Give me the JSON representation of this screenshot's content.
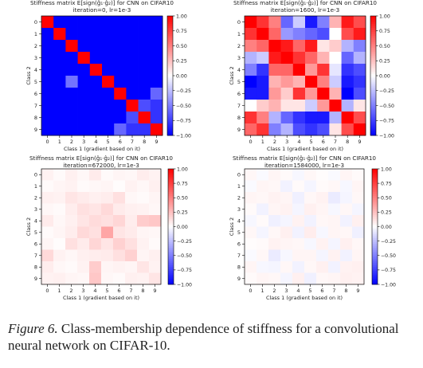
{
  "chart_data": [
    {
      "type": "heatmap",
      "title_lines": [
        "Stiffness matrix E[sign(ĝ₁·ĝ₂)] for CNN on CIFAR10",
        "iteration=0, lr=1e-3"
      ],
      "xlabel": "Class 1 (gradient based on it)",
      "ylabel": "Class 2",
      "x_ticks": [
        "0",
        "1",
        "2",
        "3",
        "4",
        "5",
        "6",
        "7",
        "8",
        "9"
      ],
      "y_ticks": [
        "0",
        "1",
        "2",
        "3",
        "4",
        "5",
        "6",
        "7",
        "8",
        "9"
      ],
      "colorbar_ticks": [
        "1.00",
        "0.75",
        "0.50",
        "0.25",
        "0.00",
        "−0.25",
        "−0.50",
        "−0.75",
        "−1.00"
      ],
      "vmin": -1,
      "vmax": 1,
      "values": [
        [
          1.0,
          -1,
          -1,
          -1,
          -1,
          -1,
          -1,
          -1,
          -1,
          -1
        ],
        [
          -1,
          1.0,
          -1,
          -1,
          -1,
          -1,
          -1,
          -1,
          -1,
          -1
        ],
        [
          -1,
          -1,
          1.0,
          -1,
          -1,
          -1,
          -1,
          -1,
          -1,
          -1
        ],
        [
          -1,
          -1,
          -1,
          1.0,
          -1,
          -1,
          -1,
          -1,
          -1,
          -1
        ],
        [
          -1,
          -1,
          -1,
          -1,
          1.0,
          -1,
          -1,
          -1,
          -1,
          -1
        ],
        [
          -1,
          -1,
          -0.55,
          -1,
          -1,
          1.0,
          -1,
          -1,
          -1,
          -1
        ],
        [
          -1,
          -1,
          -1,
          -1,
          -1,
          -1,
          1.0,
          -1,
          -1,
          -0.6
        ],
        [
          -1,
          -1,
          -1,
          -1,
          -1,
          -1,
          -1,
          1.0,
          -0.7,
          -0.8
        ],
        [
          -1,
          -1,
          -1,
          -1,
          -1,
          -1,
          -1,
          -0.7,
          1.0,
          -0.8
        ],
        [
          -1,
          -1,
          -1,
          -1,
          -1,
          -1,
          -0.6,
          -0.8,
          -0.8,
          1.0
        ]
      ]
    },
    {
      "type": "heatmap",
      "title_lines": [
        "Stiffness matrix E[sign(ĝ₁·ĝ₂)] for CNN on CIFAR10",
        "iteration=1600, lr=1e-3"
      ],
      "xlabel": "Class 1 (gradient based on it)",
      "ylabel": "Class 2",
      "x_ticks": [
        "0",
        "1",
        "2",
        "3",
        "4",
        "5",
        "6",
        "7",
        "8",
        "9"
      ],
      "y_ticks": [
        "0",
        "1",
        "2",
        "3",
        "4",
        "5",
        "6",
        "7",
        "8",
        "9"
      ],
      "colorbar_ticks": [
        "1.00",
        "0.75",
        "0.50",
        "0.25",
        "0.00",
        "−0.25",
        "−0.50",
        "−0.75",
        "−1.00"
      ],
      "vmin": -1,
      "vmax": 1,
      "values": [
        [
          1.0,
          0.8,
          0.5,
          -0.6,
          -0.2,
          -0.9,
          -0.5,
          0.3,
          0.9,
          0.7
        ],
        [
          0.8,
          1.0,
          0.6,
          -0.4,
          -0.5,
          -0.6,
          -0.7,
          0.0,
          0.7,
          0.9
        ],
        [
          0.5,
          0.6,
          1.0,
          0.9,
          0.6,
          0.9,
          0.1,
          0.2,
          -0.3,
          -0.5
        ],
        [
          -0.3,
          -0.2,
          0.9,
          1.0,
          0.8,
          0.6,
          0.3,
          0.0,
          -0.6,
          -0.3
        ],
        [
          -0.5,
          -0.8,
          0.6,
          0.6,
          1.0,
          0.4,
          0.8,
          -0.1,
          -0.8,
          -0.7
        ],
        [
          -1.0,
          -0.9,
          0.3,
          0.4,
          0.3,
          1.0,
          0.5,
          -0.2,
          -0.9,
          -0.8
        ],
        [
          -0.9,
          -0.9,
          0.4,
          0.2,
          0.8,
          0.4,
          1.0,
          0.3,
          -1.0,
          -0.7
        ],
        [
          0.0,
          0.2,
          0.3,
          0.1,
          0.1,
          -0.2,
          0.4,
          1.0,
          -0.3,
          0.1
        ],
        [
          0.8,
          0.5,
          -0.3,
          -0.6,
          -0.8,
          -0.9,
          -0.9,
          -0.3,
          1.0,
          0.7
        ],
        [
          0.6,
          0.8,
          -0.5,
          -0.3,
          -0.7,
          -0.8,
          -0.7,
          0.1,
          0.7,
          1.0
        ]
      ]
    },
    {
      "type": "heatmap",
      "title_lines": [
        "Stiffness matrix E[sign(ĝ₁·ĝ₂)] for CNN on CIFAR10",
        "iteration=672000, lr=1e-3"
      ],
      "xlabel": "Class 1 (gradient based on it)",
      "ylabel": "Class 2",
      "x_ticks": [
        "0",
        "1",
        "2",
        "3",
        "4",
        "5",
        "6",
        "7",
        "8",
        "9"
      ],
      "y_ticks": [
        "0",
        "1",
        "2",
        "3",
        "4",
        "5",
        "6",
        "7",
        "8",
        "9"
      ],
      "colorbar_ticks": [
        "1.00",
        "0.75",
        "0.50",
        "0.25",
        "0.00",
        "−0.25",
        "−0.50",
        "−0.75",
        "−1.00"
      ],
      "vmin": -1,
      "vmax": 1,
      "values": [
        [
          0.05,
          0.02,
          0.06,
          0.03,
          0.08,
          0.02,
          0.04,
          0.03,
          0.07,
          0.05
        ],
        [
          0.02,
          0.04,
          0.05,
          0.02,
          0.03,
          0.04,
          0.01,
          0.05,
          0.03,
          0.06
        ],
        [
          0.06,
          0.05,
          0.1,
          0.08,
          0.06,
          0.07,
          0.12,
          0.03,
          0.02,
          0.04
        ],
        [
          0.03,
          0.02,
          0.07,
          0.12,
          0.1,
          0.15,
          0.08,
          0.06,
          0.05,
          0.03
        ],
        [
          0.08,
          0.03,
          0.06,
          0.1,
          0.14,
          0.12,
          0.16,
          0.07,
          0.2,
          0.22
        ],
        [
          0.02,
          0.04,
          0.07,
          0.15,
          0.12,
          0.35,
          0.1,
          0.08,
          0.04,
          0.03
        ],
        [
          0.04,
          0.01,
          0.12,
          0.08,
          0.16,
          0.1,
          0.18,
          0.12,
          0.05,
          0.02
        ],
        [
          0.15,
          0.05,
          0.03,
          0.06,
          0.07,
          0.08,
          0.12,
          0.18,
          0.04,
          0.06
        ],
        [
          0.07,
          0.03,
          0.02,
          0.05,
          0.2,
          0.04,
          0.05,
          0.04,
          0.1,
          0.05
        ],
        [
          0.05,
          0.06,
          0.04,
          0.03,
          0.22,
          0.03,
          0.02,
          0.06,
          0.05,
          0.1
        ]
      ]
    },
    {
      "type": "heatmap",
      "title_lines": [
        "Stiffness matrix E[sign(ĝ₁·ĝ₂)] for CNN on CIFAR10",
        "iteration=1584000, lr=1e-3"
      ],
      "xlabel": "Class 1 (gradient based on it)",
      "ylabel": "Class 2",
      "x_ticks": [
        "0",
        "1",
        "2",
        "3",
        "4",
        "5",
        "6",
        "7",
        "8",
        "9"
      ],
      "y_ticks": [
        "0",
        "1",
        "2",
        "3",
        "4",
        "5",
        "6",
        "7",
        "8",
        "9"
      ],
      "colorbar_ticks": [
        "1.00",
        "0.75",
        "0.50",
        "0.25",
        "0.00",
        "−0.25",
        "−0.50",
        "−0.75",
        "−1.00"
      ],
      "vmin": -1,
      "vmax": 1,
      "values": [
        [
          0.03,
          -0.02,
          0.04,
          0.02,
          -0.03,
          0.03,
          0.01,
          -0.02,
          0.04,
          0.02
        ],
        [
          -0.02,
          0.04,
          0.03,
          -0.05,
          0.02,
          -0.04,
          0.02,
          0.03,
          -0.03,
          0.04
        ],
        [
          0.04,
          0.03,
          0.05,
          0.04,
          -0.06,
          0.03,
          0.05,
          -0.08,
          -0.04,
          0.03
        ],
        [
          0.02,
          -0.05,
          0.04,
          0.05,
          -0.04,
          0.06,
          0.04,
          -0.03,
          0.03,
          -0.04
        ],
        [
          -0.03,
          0.02,
          -0.06,
          -0.04,
          0.05,
          -0.05,
          0.03,
          0.04,
          -0.05,
          0.06
        ],
        [
          0.03,
          -0.04,
          0.03,
          0.06,
          -0.05,
          0.07,
          -0.03,
          0.04,
          0.03,
          -0.06
        ],
        [
          0.01,
          0.02,
          0.05,
          0.04,
          0.03,
          -0.03,
          0.05,
          -0.04,
          0.06,
          0.03
        ],
        [
          -0.02,
          0.03,
          -0.08,
          -0.03,
          0.04,
          0.04,
          -0.04,
          0.05,
          -0.05,
          0.04
        ],
        [
          0.04,
          -0.03,
          -0.04,
          0.03,
          -0.05,
          0.03,
          0.06,
          -0.05,
          0.05,
          0.06
        ],
        [
          0.02,
          0.04,
          0.03,
          -0.04,
          0.06,
          -0.06,
          0.03,
          0.04,
          0.06,
          0.05
        ]
      ]
    }
  ],
  "caption": {
    "label": "Figure 6.",
    "text": " Class-membership dependence of stiffness for a convolutional neural network on CIFAR-10."
  }
}
